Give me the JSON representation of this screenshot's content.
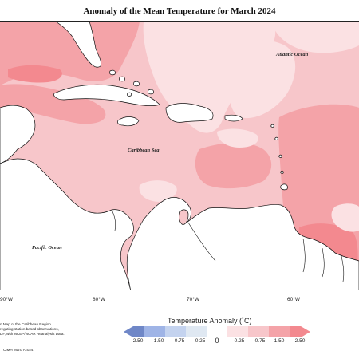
{
  "title": "Anomaly of the Mean Temperature for March 2024",
  "ocean_labels": {
    "atlantic": "Atlantic Ocean",
    "caribbean": "Caribbean Sea",
    "pacific": "Pacific Ocean"
  },
  "longitude_ticks": [
    "90°W",
    "80°W",
    "70°W",
    "60°W"
  ],
  "credit_lines": [
    "n Map of the Caribbean Region",
    "regating station based observations,",
    "DF, with NCEP/NCAR Reanalysis Data.",
    "CIMH March-2024"
  ],
  "legend": {
    "title": "Temperature Anomaly (˚C)",
    "ticks": [
      "-2.50",
      "-1.50",
      "-0.75",
      "-0.25",
      "0",
      "0.25",
      "0.75",
      "1.50",
      "2.50"
    ],
    "colors": [
      "#6f87c7",
      "#9fb4e6",
      "#c4d3ef",
      "#dfe8f2",
      "#ffffff",
      "#fbe1e3",
      "#f7c6ca",
      "#f4a3a8",
      "#f3898f"
    ]
  },
  "colors": {
    "land": "#ffffff",
    "anomaly_0_25_to_0_75": "#fbe1e3",
    "anomaly_0_75_to_1_50": "#f7c6ca",
    "anomaly_1_50_to_2_50": "#f4a3a8",
    "anomaly_above_2_50": "#f3898f"
  }
}
